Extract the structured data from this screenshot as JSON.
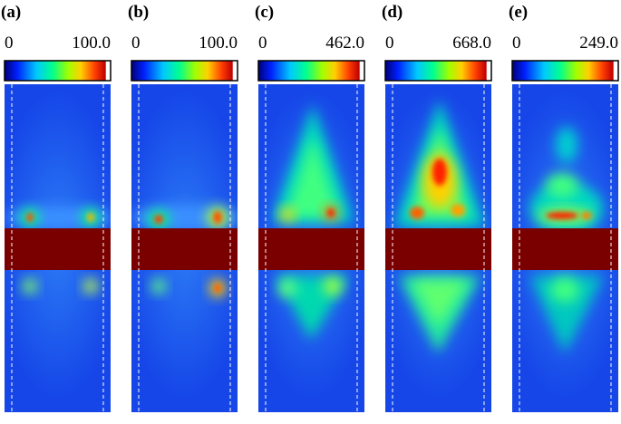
{
  "panels": [
    {
      "label": "(a)",
      "min": "0",
      "max": "100.0"
    },
    {
      "label": "(b)",
      "min": "0",
      "max": "100.0"
    },
    {
      "label": "(c)",
      "min": "0",
      "max": "462.0"
    },
    {
      "label": "(d)",
      "min": "0",
      "max": "668.0"
    },
    {
      "label": "(e)",
      "min": "0",
      "max": "249.0"
    }
  ]
}
